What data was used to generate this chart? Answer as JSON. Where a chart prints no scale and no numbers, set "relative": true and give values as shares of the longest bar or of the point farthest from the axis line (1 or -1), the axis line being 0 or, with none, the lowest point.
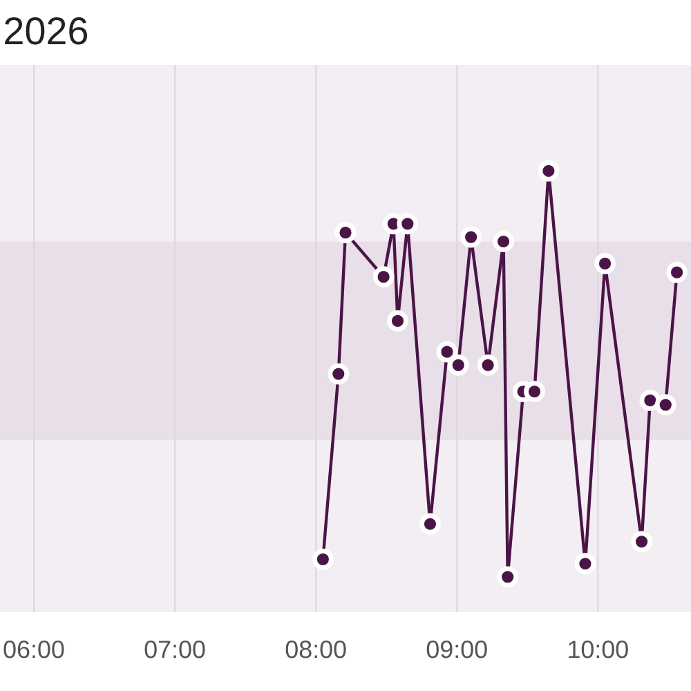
{
  "chart_data": {
    "type": "line",
    "title": "2026",
    "relative": true,
    "x": [
      8.05,
      8.16,
      8.21,
      8.48,
      8.55,
      8.58,
      8.65,
      8.81,
      8.93,
      9.01,
      9.1,
      9.22,
      9.33,
      9.36,
      9.47,
      9.55,
      9.65,
      9.91,
      10.05,
      10.31,
      10.37,
      10.48,
      10.56
    ],
    "series": [
      {
        "color": "#4b1446",
        "values": [
          0.12,
          0.54,
          0.86,
          0.76,
          0.88,
          0.66,
          0.88,
          0.2,
          0.59,
          0.56,
          0.85,
          0.56,
          0.84,
          0.08,
          0.5,
          0.5,
          1,
          0.11,
          0.79,
          0.16,
          0.48,
          0.47,
          0.77
        ]
      }
    ],
    "xlim": [
      5.76,
      10.66
    ],
    "xticks": [
      {
        "value": 6,
        "label": "06:00"
      },
      {
        "value": 7,
        "label": "07:00"
      },
      {
        "value": 8,
        "label": "08:00"
      },
      {
        "value": 9,
        "label": "09:00"
      },
      {
        "value": 10,
        "label": "10:00"
      }
    ],
    "grid": "x",
    "marker": "circle",
    "line_style": "solid",
    "bands": [
      {
        "axis": "y",
        "from": 0.39,
        "to": 0.84,
        "color": "#e9dfe9"
      }
    ]
  }
}
